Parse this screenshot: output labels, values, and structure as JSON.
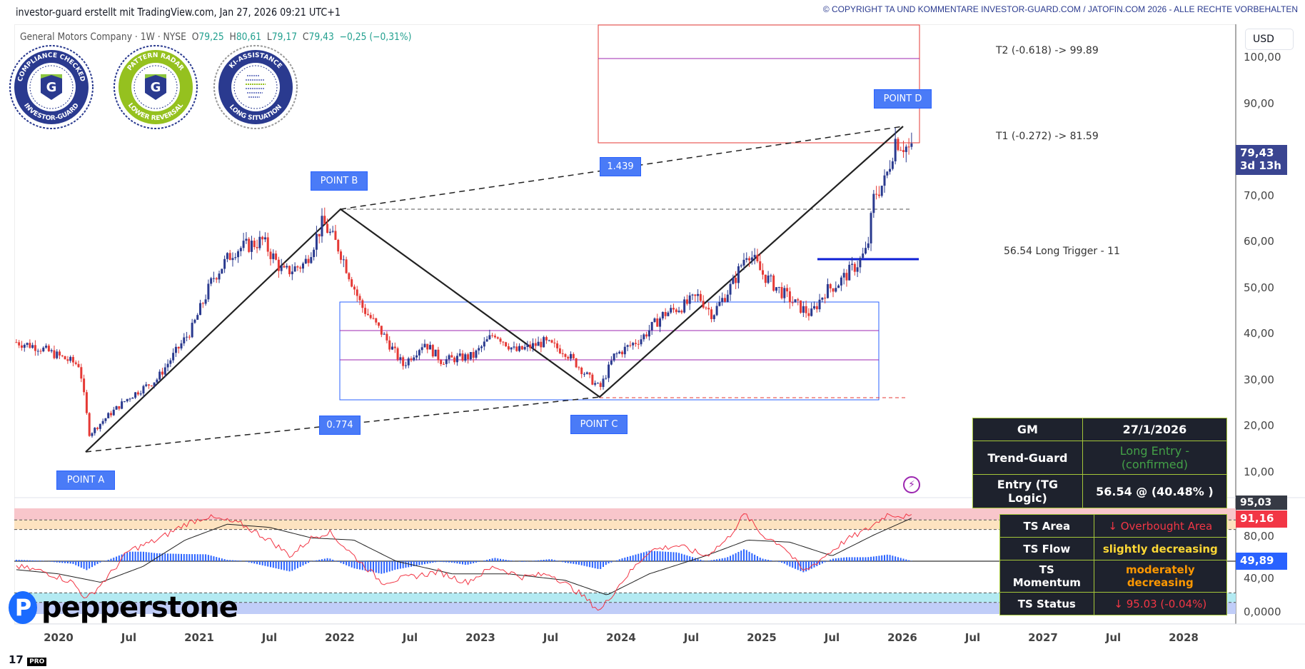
{
  "header": {
    "title": "investor-guard erstellt mit TradingView.com, Jan 27, 2026 09:21 UTC+1",
    "copyright": "© COPYRIGHT TA UND KOMMENTARE INVESTOR-GUARD.COM / JATOFIN.COM 2026 - ALLE RECHTE VORBEHALTEN"
  },
  "legend": {
    "symbol": "General Motors Company · 1W · NYSE",
    "o_label": "O",
    "o": "79,25",
    "h_label": "H",
    "h": "80,61",
    "l_label": "L",
    "l": "79,17",
    "c_label": "C",
    "c": "79,43",
    "change": "−0,25 (−0,31%)"
  },
  "badges": [
    {
      "top": "COMPLIANCE CHECKED",
      "bottom": "INVESTOR-GUARD",
      "icon": "shield-g-icon"
    },
    {
      "top": "PATTERN RADAR",
      "bottom": "LOWER REVERSAL",
      "icon": "shield-g-icon"
    },
    {
      "top": "KI-ASSISTANCE",
      "bottom": "LONG SITUATION",
      "icon": "ai-head-icon"
    }
  ],
  "currency": "USD",
  "price_axis": [
    "100,00",
    "90,00",
    "70,00",
    "60,00",
    "50,00",
    "40,00",
    "30,00",
    "20,00",
    "10,00"
  ],
  "price_tag": {
    "value": "79,43",
    "countdown": "3d 13h"
  },
  "osc_axis": {
    "t1": "95,03",
    "t2": "91,16",
    "t3": "49,89",
    "t4": "0,0000",
    "hidden1": "80,00",
    "hidden2": "40,00"
  },
  "time_axis": [
    "2020",
    "Jul",
    "2021",
    "Jul",
    "2022",
    "Jul",
    "2023",
    "Jul",
    "2024",
    "Jul",
    "2025",
    "Jul",
    "2026",
    "Jul",
    "2027",
    "Jul",
    "2028"
  ],
  "annotations": {
    "point_a": "POINT A",
    "point_b": "POINT B",
    "point_c": "POINT C",
    "point_d": "POINT D",
    "ratio_bd": "1.439",
    "ratio_ac": "0.774",
    "t2": "T2 (-0.618) -> 99.89",
    "t1": "T1 (-0.272) -> 81.59",
    "trigger": "56.54  Long Trigger - 11"
  },
  "gm_table": {
    "r1c1": "GM",
    "r1c2": "27/1/2026",
    "r2c1": "Trend-Guard",
    "r2c2": "Long Entry - (confirmed)",
    "r3c1": "Entry (TG Logic)",
    "r3c2": "56.54 @ (40.48% )"
  },
  "ts_table": {
    "r1c1": "TS Area",
    "r1c2": "↓ Overbought Area",
    "r2c1": "TS Flow",
    "r2c2": "slightly decreasing",
    "r3c1": "TS Momentum",
    "r3c2": "moderately decreasing",
    "r4c1": "TS Status",
    "r4c2": "↓ 95.03 (-0.04%)"
  },
  "colors": {
    "up": "#2a3a8f",
    "down": "#e53935",
    "accent": "#2962ff",
    "green": "#43a047",
    "yellow": "#fdd835",
    "orange": "#ff9800",
    "red": "#f23645"
  },
  "brand": "pepperstone",
  "chart_data": {
    "type": "candlestick",
    "price_path": [
      [
        2019.7,
        38
      ],
      [
        2019.85,
        37
      ],
      [
        2020.0,
        35
      ],
      [
        2020.15,
        33
      ],
      [
        2020.22,
        18
      ],
      [
        2020.35,
        22
      ],
      [
        2020.5,
        26
      ],
      [
        2020.7,
        30
      ],
      [
        2020.95,
        41
      ],
      [
        2021.1,
        52
      ],
      [
        2021.25,
        58
      ],
      [
        2021.45,
        60
      ],
      [
        2021.6,
        53
      ],
      [
        2021.75,
        55
      ],
      [
        2021.88,
        64
      ],
      [
        2022.0,
        58
      ],
      [
        2022.15,
        46
      ],
      [
        2022.3,
        40
      ],
      [
        2022.45,
        33
      ],
      [
        2022.6,
        38
      ],
      [
        2022.72,
        34
      ],
      [
        2022.95,
        35
      ],
      [
        2023.1,
        40
      ],
      [
        2023.25,
        36
      ],
      [
        2023.45,
        38
      ],
      [
        2023.6,
        36
      ],
      [
        2023.78,
        30
      ],
      [
        2023.85,
        28
      ],
      [
        2023.95,
        35
      ],
      [
        2024.15,
        39
      ],
      [
        2024.3,
        44
      ],
      [
        2024.45,
        46
      ],
      [
        2024.55,
        48
      ],
      [
        2024.65,
        44
      ],
      [
        2024.8,
        51
      ],
      [
        2024.9,
        58
      ],
      [
        2025.0,
        53
      ],
      [
        2025.1,
        50
      ],
      [
        2025.25,
        46
      ],
      [
        2025.35,
        44
      ],
      [
        2025.45,
        49
      ],
      [
        2025.55,
        51
      ],
      [
        2025.68,
        55
      ],
      [
        2025.75,
        58
      ],
      [
        2025.8,
        70
      ],
      [
        2025.88,
        73
      ],
      [
        2025.95,
        82
      ],
      [
        2026.07,
        79.43
      ]
    ],
    "ts_line": [
      [
        2019.7,
        45
      ],
      [
        2019.9,
        40
      ],
      [
        2020.1,
        30
      ],
      [
        2020.2,
        14
      ],
      [
        2020.35,
        35
      ],
      [
        2020.5,
        60
      ],
      [
        2020.7,
        70
      ],
      [
        2020.9,
        85
      ],
      [
        2021.05,
        92
      ],
      [
        2021.3,
        85
      ],
      [
        2021.5,
        70
      ],
      [
        2021.65,
        55
      ],
      [
        2021.8,
        72
      ],
      [
        2021.92,
        78
      ],
      [
        2022.1,
        55
      ],
      [
        2022.3,
        30
      ],
      [
        2022.5,
        35
      ],
      [
        2022.7,
        40
      ],
      [
        2022.9,
        30
      ],
      [
        2023.1,
        45
      ],
      [
        2023.3,
        35
      ],
      [
        2023.5,
        38
      ],
      [
        2023.7,
        20
      ],
      [
        2023.85,
        3
      ],
      [
        2024.0,
        30
      ],
      [
        2024.2,
        60
      ],
      [
        2024.4,
        65
      ],
      [
        2024.6,
        55
      ],
      [
        2024.75,
        70
      ],
      [
        2024.88,
        95
      ],
      [
        2025.0,
        75
      ],
      [
        2025.15,
        65
      ],
      [
        2025.3,
        40
      ],
      [
        2025.45,
        55
      ],
      [
        2025.6,
        70
      ],
      [
        2025.75,
        80
      ],
      [
        2025.9,
        95
      ],
      [
        2026.07,
        91.16
      ]
    ],
    "signal_line": [
      [
        2019.7,
        42
      ],
      [
        2020.0,
        38
      ],
      [
        2020.3,
        30
      ],
      [
        2020.6,
        45
      ],
      [
        2020.9,
        70
      ],
      [
        2021.2,
        85
      ],
      [
        2021.5,
        82
      ],
      [
        2021.8,
        72
      ],
      [
        2022.1,
        70
      ],
      [
        2022.4,
        50
      ],
      [
        2022.8,
        38
      ],
      [
        2023.2,
        38
      ],
      [
        2023.6,
        32
      ],
      [
        2023.9,
        18
      ],
      [
        2024.2,
        38
      ],
      [
        2024.6,
        55
      ],
      [
        2024.9,
        70
      ],
      [
        2025.2,
        68
      ],
      [
        2025.5,
        55
      ],
      [
        2025.8,
        75
      ],
      [
        2026.07,
        91
      ]
    ],
    "osc_levels": [
      80,
      89,
      11,
      20,
      50
    ],
    "price_range": [
      10,
      100
    ],
    "osc_range": [
      0,
      100
    ]
  }
}
